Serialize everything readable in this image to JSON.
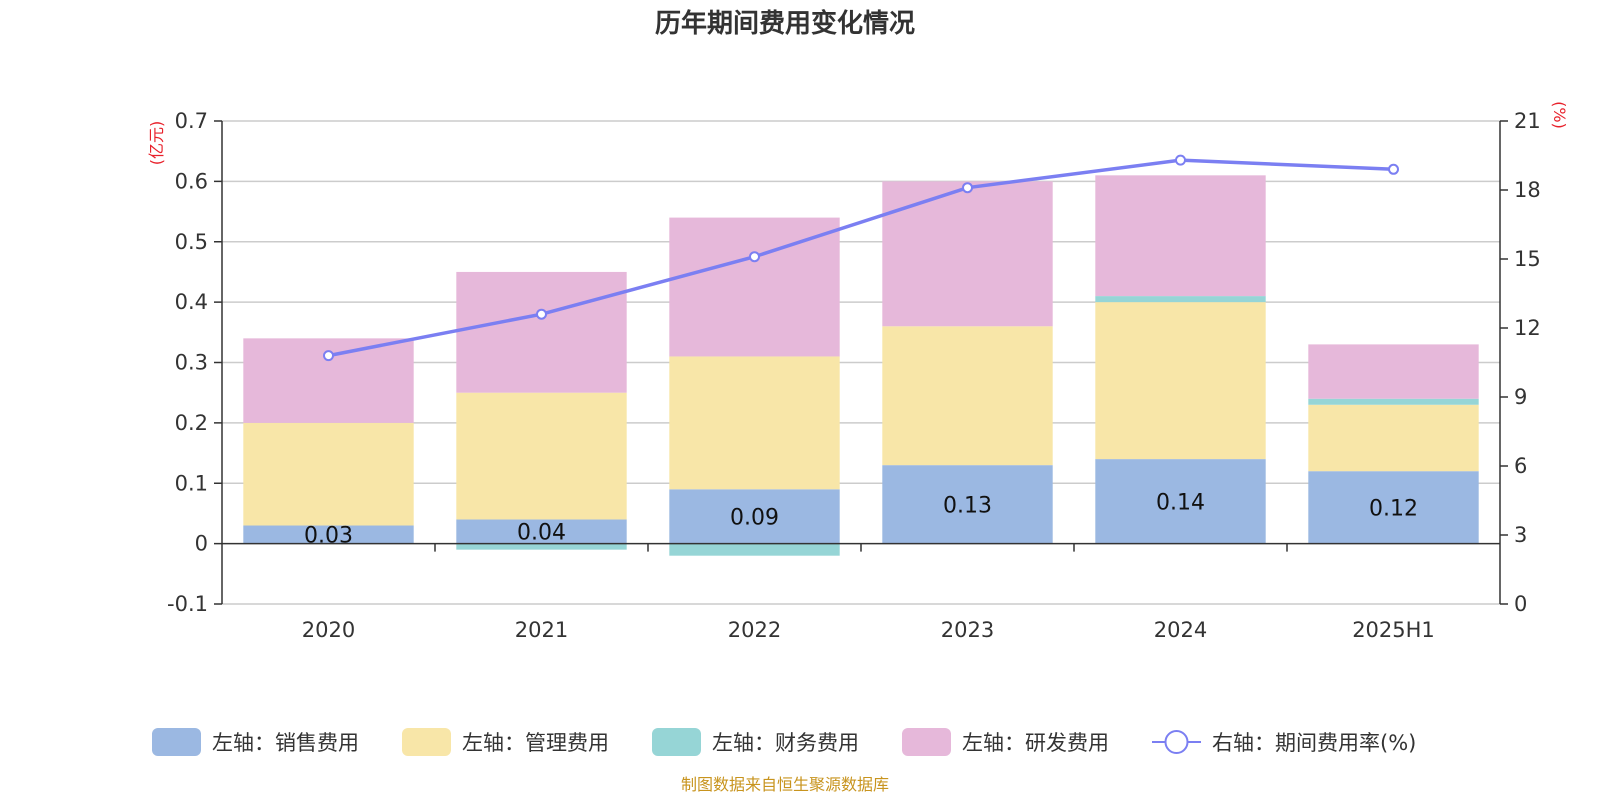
{
  "chart_data": {
    "type": "bar",
    "title": "历年期间费用变化情况",
    "categories": [
      "2020",
      "2021",
      "2022",
      "2023",
      "2024",
      "2025H1"
    ],
    "left_axis": {
      "unit": "(亿元)",
      "ylim": [
        -0.1,
        0.7
      ],
      "ticks": [
        "0.7",
        "0.6",
        "0.5",
        "0.4",
        "0.3",
        "0.2",
        "0.1",
        "0",
        "-0.1"
      ]
    },
    "right_axis": {
      "unit": "(%)",
      "ylim": [
        0,
        21
      ],
      "ticks": [
        "21",
        "18",
        "15",
        "12",
        "9",
        "6",
        "3",
        "0"
      ]
    },
    "series": [
      {
        "name": "左轴：销售费用",
        "axis": "left",
        "type": "bar",
        "color": "#9bb8e2",
        "values": [
          0.03,
          0.04,
          0.09,
          0.13,
          0.14,
          0.12
        ],
        "labels": [
          "0.03",
          "0.04",
          "0.09",
          "0.13",
          "0.14",
          "0.12"
        ]
      },
      {
        "name": "左轴：管理费用",
        "axis": "left",
        "type": "bar",
        "color": "#f8e6a8",
        "values": [
          0.17,
          0.21,
          0.22,
          0.23,
          0.26,
          0.11
        ]
      },
      {
        "name": "左轴：财务费用",
        "axis": "left",
        "type": "bar",
        "color": "#96d5d6",
        "values": [
          0.0,
          -0.01,
          -0.02,
          0.0,
          0.01,
          0.01
        ]
      },
      {
        "name": "左轴：研发费用",
        "axis": "left",
        "type": "bar",
        "color": "#e6b8da",
        "values": [
          0.14,
          0.2,
          0.23,
          0.24,
          0.2,
          0.09
        ]
      },
      {
        "name": "右轴：期间费用率(%)",
        "axis": "right",
        "type": "line",
        "color": "#7b7ff2",
        "values": [
          10.8,
          12.6,
          15.1,
          18.1,
          19.3,
          18.9
        ]
      }
    ],
    "grid": true,
    "legend_position": "bottom"
  },
  "footer": {
    "source": "制图数据来自恒生聚源数据库"
  }
}
